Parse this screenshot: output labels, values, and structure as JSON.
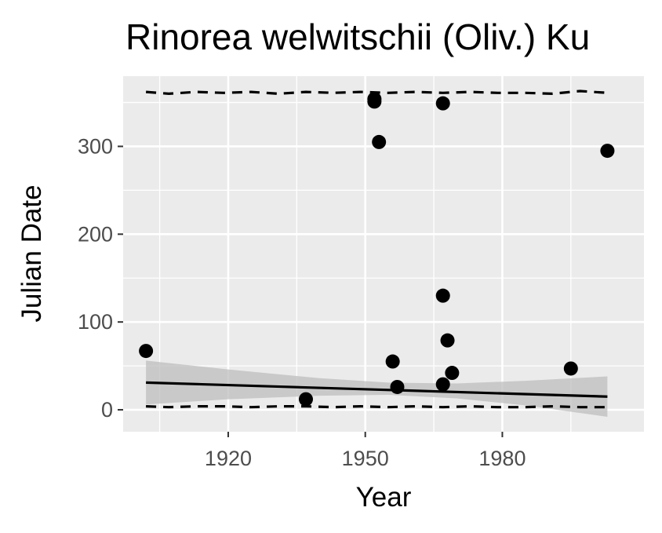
{
  "chart_data": {
    "type": "scatter",
    "title": "Rinorea welwitschii (Oliv.) Ku",
    "xlabel": "Year",
    "ylabel": "Julian Date",
    "xlim": [
      1897,
      2011
    ],
    "ylim": [
      -25,
      380
    ],
    "x_ticks": [
      1920,
      1950,
      1980
    ],
    "y_ticks": [
      0,
      100,
      200,
      300
    ],
    "grid": true,
    "legend": "none",
    "colors": {
      "panel": "#ebebeb",
      "grid": "#ffffff",
      "points": "#000000",
      "ribbon": "#bdbdbd",
      "tick_label": "#4d4d4d"
    },
    "points": [
      {
        "x": 1902,
        "y": 67
      },
      {
        "x": 1937,
        "y": 12
      },
      {
        "x": 1952,
        "y": 354
      },
      {
        "x": 1952,
        "y": 351
      },
      {
        "x": 1953,
        "y": 305
      },
      {
        "x": 1956,
        "y": 55
      },
      {
        "x": 1957,
        "y": 26
      },
      {
        "x": 1967,
        "y": 349
      },
      {
        "x": 1967,
        "y": 130
      },
      {
        "x": 1967,
        "y": 29
      },
      {
        "x": 1968,
        "y": 79
      },
      {
        "x": 1969,
        "y": 42
      },
      {
        "x": 1995,
        "y": 47
      },
      {
        "x": 2003,
        "y": 295
      }
    ],
    "trend_line": {
      "x": [
        1902,
        2003
      ],
      "y": [
        31,
        15
      ]
    },
    "confidence_band": {
      "x": [
        1902,
        1920,
        1940,
        1955,
        1970,
        1985,
        2003
      ],
      "lower": [
        6,
        12,
        16,
        17,
        13,
        5,
        -8
      ],
      "upper": [
        56,
        46,
        36,
        31,
        30,
        33,
        38
      ]
    },
    "upper_dashed": {
      "x": [
        1902,
        1907,
        1913,
        1919,
        1925,
        1931,
        1937,
        1943,
        1949,
        1955,
        1961,
        1967,
        1973,
        1979,
        1985,
        1991,
        1997,
        2003
      ],
      "y": [
        362,
        360,
        362,
        361,
        362,
        360,
        362,
        361,
        362,
        361,
        362,
        361,
        362,
        361,
        361,
        360,
        363,
        361
      ]
    },
    "lower_dashed": {
      "x": [
        1902,
        1907,
        1913,
        1919,
        1925,
        1931,
        1937,
        1943,
        1949,
        1955,
        1961,
        1967,
        1973,
        1979,
        1985,
        1991,
        1997,
        2003
      ],
      "y": [
        4,
        3,
        4,
        4,
        3,
        4,
        4,
        3,
        4,
        3,
        4,
        3,
        4,
        3,
        3,
        4,
        3,
        3
      ]
    }
  }
}
